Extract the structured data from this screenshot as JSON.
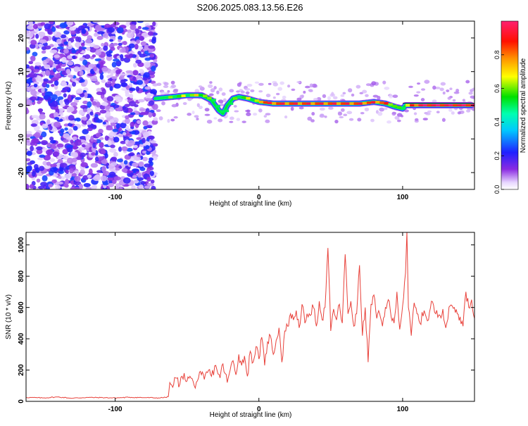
{
  "title": "S206.2025.083.13.56.E26",
  "chart_data": [
    {
      "type": "heatmap",
      "title": "S206.2025.083.13.56.E26",
      "xlabel": "Height of straight line (km)",
      "ylabel": "Frequency (Hz)",
      "xlim": [
        -162,
        150
      ],
      "ylim": [
        -25,
        25
      ],
      "xticks": [
        -100,
        0,
        100
      ],
      "xtick_labels": [
        "-100",
        "0",
        "100"
      ],
      "yticks": [
        -20,
        -10,
        0,
        10,
        20
      ],
      "ytick_labels": [
        "-20",
        "-10",
        "0",
        "10",
        "20"
      ],
      "noise_region_x": [
        -162,
        -72
      ],
      "signal_track": {
        "x": [
          -72,
          -60,
          -50,
          -40,
          -33,
          -28,
          -25,
          -22,
          -18,
          -14,
          -8,
          0,
          10,
          20,
          30,
          40,
          50,
          60,
          70,
          80,
          88,
          95,
          100,
          102,
          110,
          120,
          130,
          140,
          148
        ],
        "freq_hz": [
          2,
          2.5,
          3,
          3,
          1.5,
          -1.5,
          -2.5,
          0,
          2,
          2.5,
          2,
          1,
          0.5,
          0.5,
          0.5,
          0.5,
          0.5,
          0.5,
          0.5,
          1,
          0.5,
          -0.5,
          -1,
          0,
          0,
          0,
          0,
          0,
          0
        ],
        "amplitude": [
          0.6,
          0.75,
          0.8,
          0.85,
          0.6,
          0.5,
          0.4,
          0.55,
          0.7,
          0.75,
          0.8,
          0.85,
          0.85,
          0.85,
          0.85,
          0.85,
          0.85,
          0.85,
          0.85,
          0.85,
          0.8,
          0.5,
          0.4,
          0.7,
          0.95,
          0.95,
          0.95,
          0.95,
          0.95
        ]
      },
      "grid": false,
      "colorbar": {
        "label": "Normalized spectral amplitude",
        "range": [
          0,
          1
        ],
        "ticks": [
          0.0,
          0.2,
          0.4,
          0.6,
          0.8
        ],
        "tick_labels": [
          "0.0",
          "0.2",
          "0.4",
          "0.6",
          "0.8"
        ],
        "colormap": "hsv-rainbow (white, violet, blue, cyan, green, yellow, orange, red, magenta)"
      }
    },
    {
      "type": "line",
      "xlabel": "Height of straight line (km)",
      "ylabel": "SNR (10 * v/v)",
      "xlim": [
        -162,
        150
      ],
      "ylim": [
        0,
        1080
      ],
      "xticks": [
        -100,
        0,
        100
      ],
      "xtick_labels": [
        "-100",
        "0",
        "100"
      ],
      "yticks": [
        0,
        200,
        400,
        600,
        800,
        1000
      ],
      "ytick_labels": [
        "0",
        "200",
        "400",
        "600",
        "800",
        "1000"
      ],
      "grid": false,
      "series": [
        {
          "color": "#e8413a",
          "x": [
            -162,
            -150,
            -140,
            -130,
            -120,
            -110,
            -100,
            -90,
            -80,
            -70,
            -65,
            -63,
            -62,
            -60,
            -58,
            -55,
            -52,
            -50,
            -48,
            -45,
            -42,
            -40,
            -38,
            -35,
            -33,
            -30,
            -27,
            -25,
            -22,
            -20,
            -18,
            -16,
            -14,
            -12,
            -10,
            -8,
            -6,
            -4,
            -2,
            0,
            2,
            4,
            6,
            8,
            10,
            12,
            14,
            16,
            18,
            20,
            22,
            24,
            26,
            28,
            30,
            32,
            35,
            38,
            40,
            42,
            44,
            46,
            48,
            50,
            52,
            54,
            56,
            58,
            60,
            62,
            64,
            66,
            68,
            70,
            72,
            74,
            76,
            78,
            80,
            82,
            84,
            86,
            88,
            90,
            92,
            94,
            96,
            98,
            100,
            102,
            103,
            104,
            106,
            108,
            110,
            112,
            115,
            118,
            120,
            123,
            126,
            128,
            130,
            133,
            136,
            138,
            140,
            142,
            144,
            146,
            148,
            150
          ],
          "y": [
            25,
            22,
            28,
            20,
            25,
            24,
            22,
            26,
            24,
            22,
            25,
            30,
            120,
            90,
            150,
            110,
            180,
            130,
            160,
            100,
            150,
            170,
            140,
            200,
            160,
            230,
            150,
            240,
            120,
            200,
            260,
            170,
            300,
            230,
            290,
            160,
            320,
            250,
            350,
            270,
            410,
            230,
            380,
            420,
            300,
            390,
            470,
            250,
            450,
            480,
            560,
            520,
            580,
            470,
            620,
            500,
            560,
            600,
            480,
            640,
            520,
            600,
            980,
            450,
            590,
            520,
            620,
            500,
            940,
            560,
            640,
            480,
            560,
            870,
            420,
            600,
            250,
            620,
            680,
            530,
            560,
            480,
            600,
            650,
            540,
            500,
            700,
            460,
            610,
            820,
            1085,
            600,
            420,
            630,
            560,
            500,
            580,
            520,
            640,
            560,
            550,
            590,
            470,
            610,
            600,
            560,
            540,
            480,
            700,
            600,
            650,
            530
          ]
        }
      ]
    }
  ]
}
